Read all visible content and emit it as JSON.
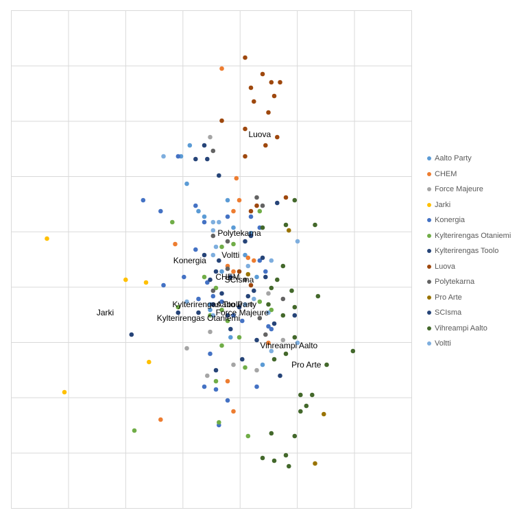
{
  "chart_data": {
    "type": "scatter",
    "title": "",
    "xlabel": "",
    "ylabel": "",
    "grid": true,
    "legend_position": "right",
    "series": [
      {
        "name": "Aalto Party",
        "color": "#5b9bd5",
        "points": [
          [
            -0.85,
            2.6
          ],
          [
            -1.0,
            2.4
          ],
          [
            -0.9,
            1.9
          ],
          [
            -0.7,
            1.4
          ],
          [
            -0.6,
            1.3
          ],
          [
            -0.2,
            1.6
          ],
          [
            -0.1,
            1.1
          ],
          [
            0.2,
            1.0
          ],
          [
            0.1,
            0.6
          ],
          [
            0.3,
            0.2
          ],
          [
            -0.3,
            0.3
          ],
          [
            -0.5,
            -0.4
          ],
          [
            -0.15,
            -0.9
          ],
          [
            0.4,
            -1.4
          ],
          [
            -0.5,
            -0.3
          ]
        ],
        "label": "Aalto Party",
        "label_at": [
          -0.05,
          -0.35
        ]
      },
      {
        "name": "CHEM",
        "color": "#ed7d31",
        "points": [
          [
            -0.3,
            4.0
          ],
          [
            -0.05,
            2.0
          ],
          [
            0.0,
            1.6
          ],
          [
            -0.1,
            1.4
          ],
          [
            -1.1,
            0.8
          ],
          [
            -0.2,
            0.4
          ],
          [
            -0.1,
            0.3
          ],
          [
            0.15,
            0.55
          ],
          [
            0.25,
            0.5
          ],
          [
            0.5,
            -1.0
          ],
          [
            -0.2,
            -1.7
          ],
          [
            -1.35,
            -2.4
          ],
          [
            -0.1,
            -2.25
          ]
        ],
        "label": "CHEM",
        "label_at": [
          -0.2,
          0.15
        ]
      },
      {
        "name": "Force Majeure",
        "color": "#a5a5a5",
        "points": [
          [
            -0.5,
            2.75
          ],
          [
            0.2,
            -0.3
          ],
          [
            0.5,
            -0.1
          ],
          [
            -0.5,
            -0.8
          ],
          [
            -0.9,
            -1.1
          ],
          [
            -0.1,
            -1.4
          ],
          [
            -0.55,
            -1.6
          ],
          [
            0.75,
            -0.95
          ],
          [
            0.3,
            -1.5
          ]
        ],
        "label": "Force Majeure",
        "label_at": [
          0.05,
          -0.5
        ]
      },
      {
        "name": "Jarki",
        "color": "#ffc000",
        "points": [
          [
            -3.3,
            0.9
          ],
          [
            -1.95,
            0.15
          ],
          [
            -1.6,
            0.1
          ],
          [
            -1.55,
            -1.35
          ],
          [
            -3.0,
            -1.9
          ]
        ],
        "label": "Jarki",
        "label_at": [
          -2.3,
          -0.5
        ]
      },
      {
        "name": "Konergia",
        "color": "#4472c4",
        "points": [
          [
            -1.05,
            2.4
          ],
          [
            -1.65,
            1.6
          ],
          [
            -1.35,
            1.4
          ],
          [
            -0.75,
            1.5
          ],
          [
            -0.2,
            1.3
          ],
          [
            0.35,
            1.1
          ],
          [
            -0.6,
            1.2
          ],
          [
            -0.75,
            0.7
          ],
          [
            -0.95,
            0.2
          ],
          [
            -1.3,
            0.05
          ],
          [
            -0.7,
            -0.2
          ],
          [
            -0.55,
            0.1
          ],
          [
            -0.45,
            -0.15
          ],
          [
            -0.3,
            -0.25
          ],
          [
            -0.1,
            -0.5
          ],
          [
            0.05,
            -0.6
          ],
          [
            0.5,
            -0.7
          ],
          [
            0.55,
            -0.75
          ],
          [
            -0.35,
            -2.5
          ],
          [
            -0.4,
            -1.85
          ],
          [
            0.3,
            -1.8
          ],
          [
            -0.2,
            -2.05
          ],
          [
            -0.5,
            -1.2
          ],
          [
            -0.6,
            -1.8
          ],
          [
            0.2,
            1.3
          ],
          [
            0.35,
            0.5
          ],
          [
            0.45,
            0.3
          ]
        ],
        "label": "Konergia",
        "label_at": [
          -0.85,
          0.45
        ]
      },
      {
        "name": "Kylterirengas Otaniemi",
        "color": "#70ad47",
        "points": [
          [
            -1.15,
            1.2
          ],
          [
            0.35,
            1.4
          ],
          [
            -0.3,
            0.75
          ],
          [
            -0.1,
            0.8
          ],
          [
            -0.6,
            0.2
          ],
          [
            -0.4,
            0.0
          ],
          [
            -1.05,
            -0.35
          ],
          [
            -0.5,
            -0.5
          ],
          [
            -0.3,
            -0.4
          ],
          [
            -0.2,
            -0.6
          ],
          [
            0.35,
            -0.25
          ],
          [
            0.55,
            -0.4
          ],
          [
            0.0,
            -0.9
          ],
          [
            -0.3,
            -1.05
          ],
          [
            0.1,
            -1.45
          ],
          [
            -0.4,
            -1.7
          ],
          [
            -1.8,
            -2.6
          ],
          [
            -0.35,
            -2.45
          ],
          [
            0.15,
            -2.7
          ]
        ],
        "label": "Kylterirengas Otaniemi",
        "label_at": [
          -0.7,
          -0.6
        ]
      },
      {
        "name": "Kylterirengas Toolo",
        "color": "#264478",
        "points": [
          [
            -0.6,
            2.6
          ],
          [
            -0.55,
            2.35
          ],
          [
            -0.75,
            2.35
          ],
          [
            -0.35,
            2.05
          ],
          [
            0.1,
            0.85
          ],
          [
            -0.6,
            0.6
          ],
          [
            -0.4,
            0.3
          ],
          [
            -0.5,
            0.15
          ],
          [
            -0.15,
            0.2
          ],
          [
            -0.3,
            -0.1
          ],
          [
            -0.45,
            -0.3
          ],
          [
            0.15,
            -0.15
          ],
          [
            -0.2,
            -0.5
          ],
          [
            -0.7,
            -0.45
          ],
          [
            -1.85,
            -0.85
          ],
          [
            -1.05,
            -0.45
          ]
        ],
        "label": "Kylterirengas Toolo",
        "label_at": [
          -0.55,
          -0.35
        ]
      },
      {
        "name": "Luova",
        "color": "#9e480e",
        "points": [
          [
            0.1,
            4.2
          ],
          [
            0.4,
            3.9
          ],
          [
            0.55,
            3.75
          ],
          [
            0.7,
            3.75
          ],
          [
            0.2,
            3.65
          ],
          [
            0.6,
            3.5
          ],
          [
            0.25,
            3.4
          ],
          [
            0.5,
            3.2
          ],
          [
            -0.3,
            3.05
          ],
          [
            0.1,
            2.9
          ],
          [
            0.65,
            2.75
          ],
          [
            0.45,
            2.6
          ],
          [
            0.1,
            2.4
          ],
          [
            0.8,
            1.65
          ],
          [
            0.3,
            1.5
          ],
          [
            0.2,
            1.4
          ],
          [
            0.0,
            0.3
          ],
          [
            0.2,
            0.05
          ]
        ],
        "label": "Luova",
        "label_at": [
          0.35,
          2.75
        ]
      },
      {
        "name": "Polytekarna",
        "color": "#636363",
        "points": [
          [
            -0.45,
            2.5
          ],
          [
            0.3,
            1.65
          ],
          [
            0.4,
            1.5
          ],
          [
            -0.45,
            0.95
          ],
          [
            -0.2,
            0.85
          ],
          [
            0.35,
            -0.55
          ],
          [
            -0.45,
            -0.05
          ],
          [
            0.75,
            -0.2
          ],
          [
            0.45,
            -0.85
          ],
          [
            0.1,
            0.15
          ],
          [
            -0.2,
            0.35
          ]
        ],
        "label": "Polytekarna",
        "label_at": [
          0.0,
          0.95
        ]
      },
      {
        "name": "Pro Arte",
        "color": "#997300",
        "points": [
          [
            0.85,
            1.05
          ],
          [
            1.45,
            -2.3
          ],
          [
            1.3,
            -3.2
          ],
          [
            0.15,
            0.25
          ]
        ],
        "label": "Pro Arte",
        "label_at": [
          1.15,
          -1.45
        ]
      },
      {
        "name": "SCIsma",
        "color": "#264478",
        "points": [
          [
            0.65,
            1.55
          ],
          [
            0.2,
            0.95
          ],
          [
            0.4,
            0.55
          ],
          [
            -0.35,
            0.5
          ],
          [
            0.25,
            -0.05
          ],
          [
            0.45,
            0.2
          ],
          [
            0.95,
            -0.5
          ],
          [
            0.6,
            -0.65
          ],
          [
            -0.15,
            -0.75
          ],
          [
            0.3,
            -0.95
          ],
          [
            0.05,
            -1.3
          ],
          [
            0.7,
            -1.6
          ],
          [
            -0.4,
            -1.5
          ],
          [
            0.0,
            -0.35
          ]
        ],
        "label": "SCIsma",
        "label_at": [
          0.0,
          0.1
        ]
      },
      {
        "name": "Vihreampi Aalto",
        "color": "#43682b",
        "points": [
          [
            0.95,
            1.6
          ],
          [
            0.8,
            1.15
          ],
          [
            1.3,
            1.15
          ],
          [
            0.4,
            1.1
          ],
          [
            0.75,
            0.4
          ],
          [
            0.65,
            0.15
          ],
          [
            0.9,
            -0.05
          ],
          [
            1.35,
            -0.15
          ],
          [
            0.5,
            -0.3
          ],
          [
            0.75,
            -0.5
          ],
          [
            0.95,
            -0.9
          ],
          [
            0.6,
            -1.3
          ],
          [
            0.8,
            -1.2
          ],
          [
            1.95,
            -1.15
          ],
          [
            1.5,
            -1.4
          ],
          [
            1.05,
            -1.95
          ],
          [
            1.25,
            -1.95
          ],
          [
            1.15,
            -2.15
          ],
          [
            1.05,
            -2.25
          ],
          [
            0.55,
            -2.65
          ],
          [
            0.95,
            -2.7
          ],
          [
            0.8,
            -3.05
          ],
          [
            0.6,
            -3.15
          ],
          [
            0.4,
            -3.1
          ],
          [
            0.85,
            -3.25
          ],
          [
            0.55,
            0.0
          ],
          [
            0.95,
            -0.35
          ]
        ],
        "label": "Vihreampi Aalto",
        "label_at": [
          0.85,
          -1.1
        ]
      },
      {
        "name": "Voltti",
        "color": "#7eaede",
        "points": [
          [
            -1.3,
            2.4
          ],
          [
            -0.45,
            1.2
          ],
          [
            -0.35,
            1.2
          ],
          [
            -0.45,
            1.05
          ],
          [
            1.0,
            0.85
          ],
          [
            -0.4,
            0.75
          ],
          [
            -0.45,
            0.6
          ],
          [
            0.15,
            0.4
          ],
          [
            0.25,
            -0.2
          ],
          [
            0.5,
            -0.45
          ],
          [
            1.0,
            -1.0
          ],
          [
            0.55,
            -1.15
          ],
          [
            -0.9,
            -0.25
          ],
          [
            -0.45,
            -0.5
          ],
          [
            0.55,
            0.5
          ],
          [
            0.1,
            -0.3
          ]
        ],
        "label": "Voltti",
        "label_at": [
          -0.15,
          0.55
        ]
      }
    ]
  }
}
